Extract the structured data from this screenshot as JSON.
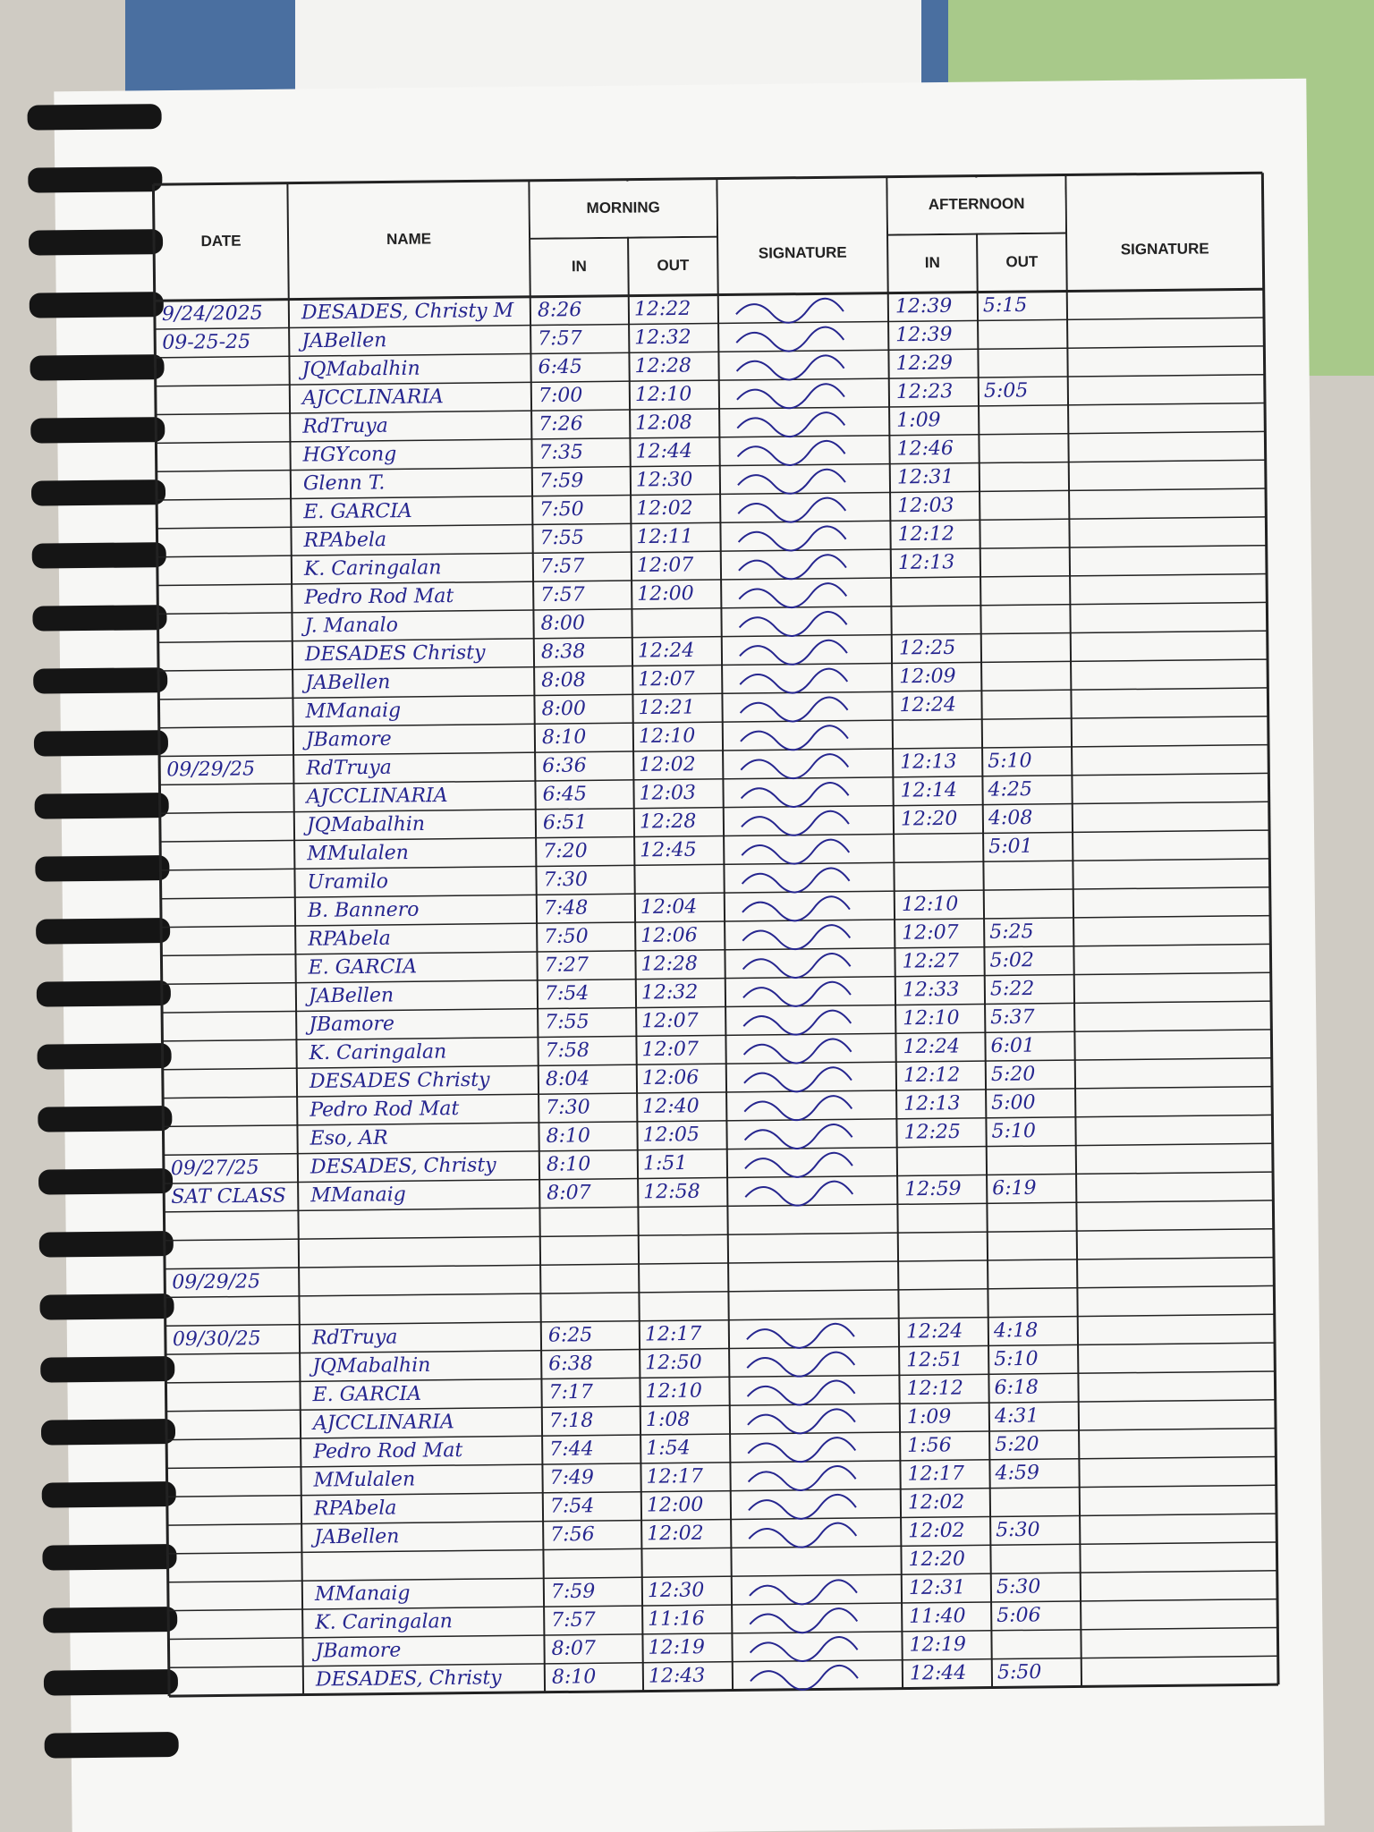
{
  "table": {
    "header": {
      "date": "DATE",
      "name": "NAME",
      "morning": "MORNING",
      "afternoon": "AFTERNOON",
      "m_in": "IN",
      "m_out": "OUT",
      "m_signature": "SIGNATURE",
      "a_in": "IN",
      "a_out": "OUT",
      "a_signature": "SIGNATURE"
    },
    "rows": [
      [
        "9/24/2025",
        "DESADES, Christy M",
        "8:26",
        "12:22",
        "12:39",
        "5:15"
      ],
      [
        "09-25-25",
        "JABellen",
        "7:57",
        "12:32",
        "12:39",
        null
      ],
      [
        null,
        "JQMabalhin",
        "6:45",
        "12:28",
        "12:29",
        null
      ],
      [
        null,
        "AJCCLINARIA",
        "7:00",
        "12:10",
        "12:23",
        "5:05"
      ],
      [
        null,
        "RdTruya",
        "7:26",
        "12:08",
        "1:09",
        null
      ],
      [
        null,
        "HGYcong",
        "7:35",
        "12:44",
        "12:46",
        null
      ],
      [
        null,
        "Glenn T.",
        "7:59",
        "12:30",
        "12:31",
        null
      ],
      [
        null,
        "E. GARCIA",
        "7:50",
        "12:02",
        "12:03",
        null
      ],
      [
        null,
        "RPAbela",
        "7:55",
        "12:11",
        "12:12",
        null
      ],
      [
        null,
        "K. Caringalan",
        "7:57",
        "12:07",
        "12:13",
        null
      ],
      [
        null,
        "Pedro Rod Mat",
        "7:57",
        "12:00",
        null,
        null
      ],
      [
        null,
        "J. Manalo",
        "8:00",
        null,
        null,
        null
      ],
      [
        null,
        "DESADES Christy",
        "8:38",
        "12:24",
        "12:25",
        null
      ],
      [
        null,
        "JABellen",
        "8:08",
        "12:07",
        "12:09",
        null
      ],
      [
        null,
        "MManaig",
        "8:00",
        "12:21",
        "12:24",
        null
      ],
      [
        null,
        "JBamore",
        "8:10",
        "12:10",
        null,
        null
      ],
      [
        "09/29/25",
        "RdTruya",
        "6:36",
        "12:02",
        "12:13",
        "5:10"
      ],
      [
        null,
        "AJCCLINARIA",
        "6:45",
        "12:03",
        "12:14",
        "4:25"
      ],
      [
        null,
        "JQMabalhin",
        "6:51",
        "12:28",
        "12:20",
        "4:08"
      ],
      [
        null,
        "MMulalen",
        "7:20",
        "12:45",
        null,
        "5:01"
      ],
      [
        null,
        "Uramilo",
        "7:30",
        null,
        null,
        null
      ],
      [
        null,
        "B. Bannero",
        "7:48",
        "12:04",
        "12:10",
        null
      ],
      [
        null,
        "RPAbela",
        "7:50",
        "12:06",
        "12:07",
        "5:25"
      ],
      [
        null,
        "E. GARCIA",
        "7:27",
        "12:28",
        "12:27",
        "5:02"
      ],
      [
        null,
        "JABellen",
        "7:54",
        "12:32",
        "12:33",
        "5:22"
      ],
      [
        null,
        "JBamore",
        "7:55",
        "12:07",
        "12:10",
        "5:37"
      ],
      [
        null,
        "K. Caringalan",
        "7:58",
        "12:07",
        "12:24",
        "6:01"
      ],
      [
        null,
        "DESADES Christy",
        "8:04",
        "12:06",
        "12:12",
        "5:20"
      ],
      [
        null,
        "Pedro Rod Mat",
        "7:30",
        "12:40",
        "12:13",
        "5:00"
      ],
      [
        null,
        "Eso, AR",
        "8:10",
        "12:05",
        "12:25",
        "5:10"
      ],
      [
        "09/27/25",
        "DESADES, Christy",
        "8:10",
        "1:51",
        null,
        null
      ],
      [
        "SAT CLASS",
        "MManaig",
        "8:07",
        "12:58",
        "12:59",
        "6:19"
      ],
      [
        null,
        null,
        null,
        null,
        null,
        null
      ],
      [
        null,
        null,
        null,
        null,
        null,
        null
      ],
      [
        "09/29/25",
        null,
        null,
        null,
        null,
        null
      ],
      [
        null,
        null,
        null,
        null,
        null,
        null
      ],
      [
        "09/30/25",
        "RdTruya",
        "6:25",
        "12:17",
        "12:24",
        "4:18"
      ],
      [
        null,
        "JQMabalhin",
        "6:38",
        "12:50",
        "12:51",
        "5:10"
      ],
      [
        null,
        "E. GARCIA",
        "7:17",
        "12:10",
        "12:12",
        "6:18"
      ],
      [
        null,
        "AJCCLINARIA",
        "7:18",
        "1:08",
        "1:09",
        "4:31"
      ],
      [
        null,
        "Pedro Rod Mat",
        "7:44",
        "1:54",
        "1:56",
        "5:20"
      ],
      [
        null,
        "MMulalen",
        "7:49",
        "12:17",
        "12:17",
        "4:59"
      ],
      [
        null,
        "RPAbela",
        "7:54",
        "12:00",
        "12:02",
        null
      ],
      [
        null,
        "JABellen",
        "7:56",
        "12:02",
        "12:02",
        "5:30"
      ],
      [
        null,
        null,
        null,
        null,
        "12:20",
        null
      ],
      [
        null,
        "MManaig",
        "7:59",
        "12:30",
        "12:31",
        "5:30"
      ],
      [
        null,
        "K. Caringalan",
        "7:57",
        "11:16",
        "11:40",
        "5:06"
      ],
      [
        null,
        "JBamore",
        "8:07",
        "12:19",
        "12:19",
        null
      ],
      [
        null,
        "DESADES, Christy",
        "8:10",
        "12:43",
        "12:44",
        "5:50"
      ]
    ]
  }
}
